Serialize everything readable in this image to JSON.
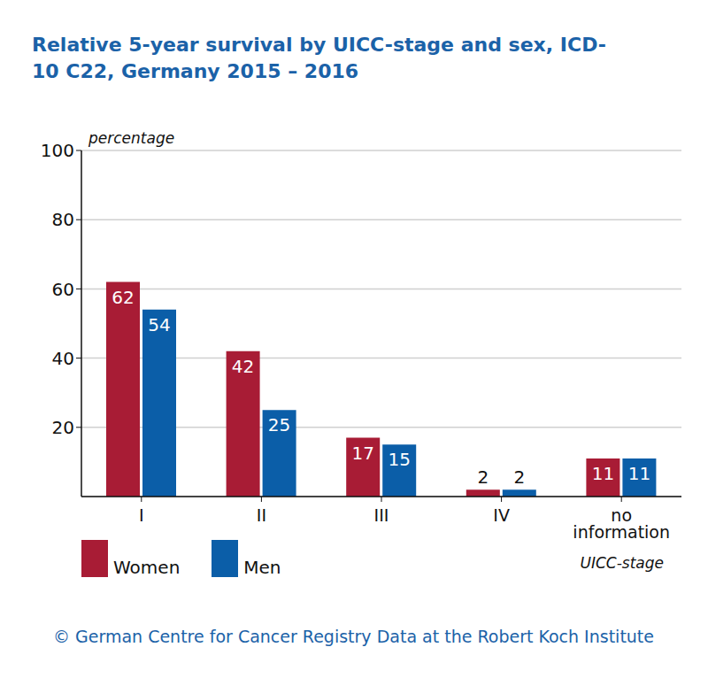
{
  "chart_data": {
    "type": "bar",
    "title": "Relative 5-year survival by UICC-stage and sex, ICD-10 C22, Germany 2015 – 2016",
    "y_label": "percentage",
    "x_label": "UICC-stage",
    "annotation": "© German Centre for Cancer Registry Data at the Robert Koch Institute",
    "categories": [
      "I",
      "II",
      "III",
      "IV",
      "no information"
    ],
    "series": [
      {
        "name": "Women",
        "color": "#a81c35",
        "values": [
          62,
          42,
          17,
          2,
          11
        ]
      },
      {
        "name": "Men",
        "color": "#0b5ea8",
        "values": [
          54,
          25,
          15,
          2,
          11
        ]
      }
    ],
    "ylim": [
      0,
      100
    ],
    "yticks": [
      20,
      40,
      60,
      80,
      100
    ],
    "grid": true,
    "data_labels": true,
    "legend": "bottom left"
  }
}
